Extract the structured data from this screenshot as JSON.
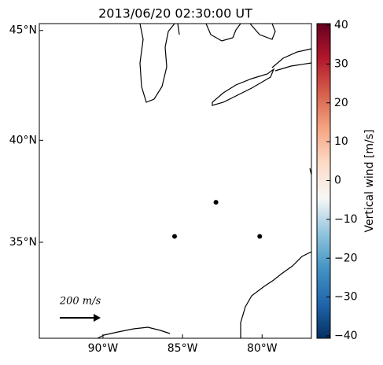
{
  "chart_data": {
    "type": "map",
    "title": "2013/06/20 02:30:00 UT",
    "projection": "mercator",
    "xlim": [
      -94,
      -76.9
    ],
    "ylim": [
      30,
      45.3
    ],
    "xticks": [
      {
        "value": -90,
        "label": "90°W"
      },
      {
        "value": -85,
        "label": "85°W"
      },
      {
        "value": -80,
        "label": "80°W"
      }
    ],
    "yticks": [
      {
        "value": 35,
        "label": "35°N"
      },
      {
        "value": 40,
        "label": "40°N"
      },
      {
        "value": 45,
        "label": "45°N"
      }
    ],
    "points": {
      "color": "#000000",
      "x": [
        -85.5,
        -80.15,
        -82.9
      ],
      "y": [
        35.3,
        35.3,
        37.0
      ]
    },
    "scale_arrow": {
      "label": "200 m/s"
    },
    "colorbar": {
      "label": "Vertical wind [m/s]",
      "lim": [
        -40,
        40
      ],
      "colors": [
        "#053061",
        "#2166ac",
        "#4393c3",
        "#92c5de",
        "#f7f7f7",
        "#fddbc7",
        "#f4a582",
        "#d6604d",
        "#b2182b",
        "#67001f"
      ],
      "ticks": [
        {
          "value": -40,
          "label": "−40"
        },
        {
          "value": -30,
          "label": "−30"
        },
        {
          "value": -20,
          "label": "−20"
        },
        {
          "value": -10,
          "label": "−10"
        },
        0,
        10,
        20,
        30,
        40
      ]
    }
  }
}
